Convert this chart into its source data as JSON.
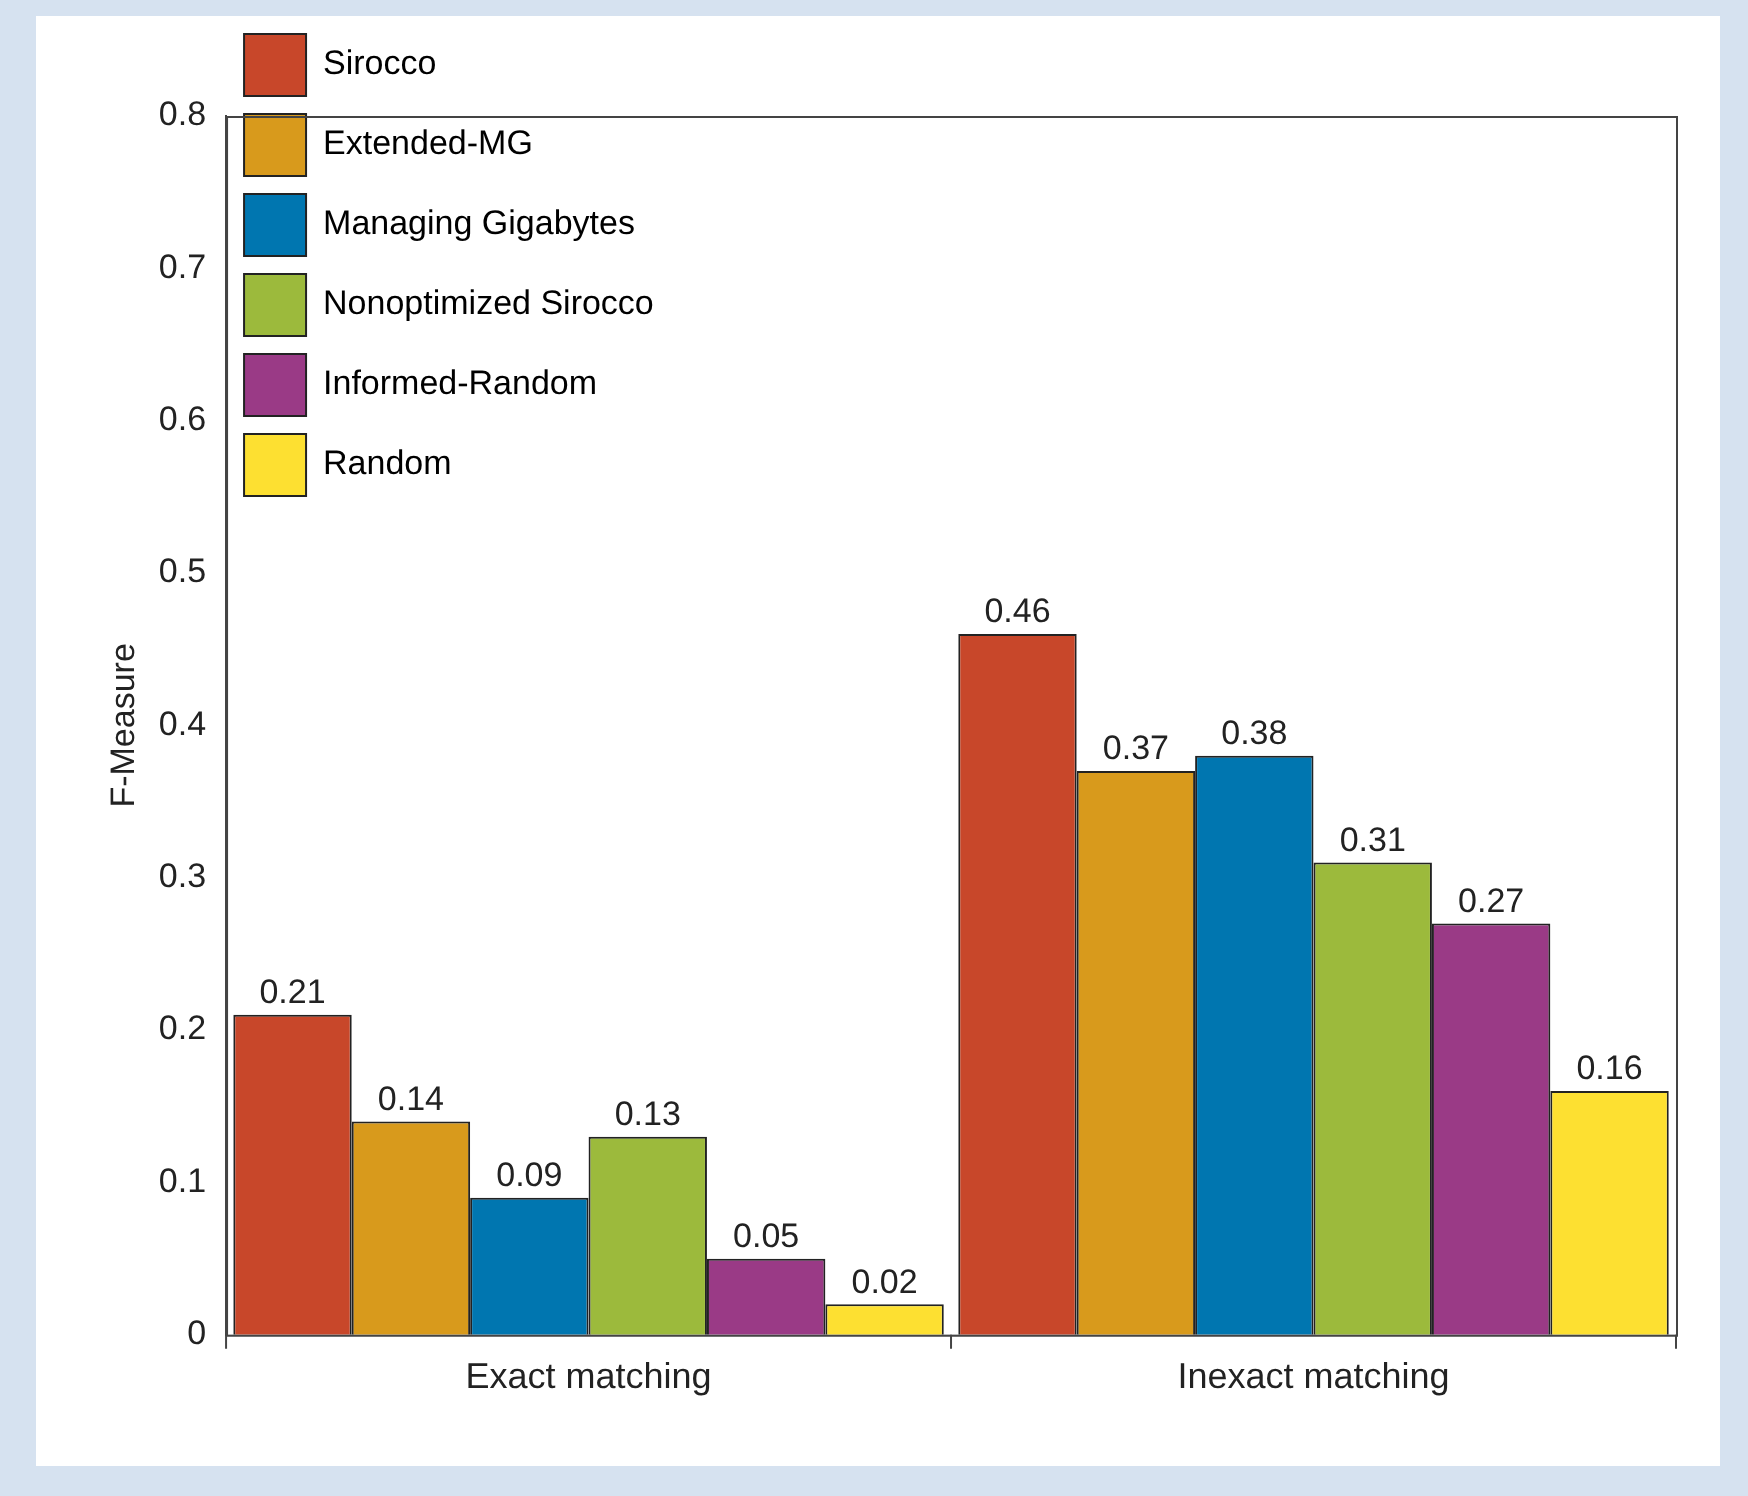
{
  "chart_data": {
    "type": "bar",
    "ylabel": "F-Measure",
    "categories": [
      "Exact matching",
      "Inexact matching"
    ],
    "series": [
      {
        "name": "Sirocco",
        "color": "#c8472a",
        "values": [
          0.21,
          0.46
        ]
      },
      {
        "name": "Extended-MG",
        "color": "#d89a1c",
        "values": [
          0.14,
          0.37
        ]
      },
      {
        "name": "Managing Gigabytes",
        "color": "#0076b0",
        "values": [
          0.09,
          0.38
        ]
      },
      {
        "name": "Nonoptimized Sirocco",
        "color": "#9cba3c",
        "values": [
          0.13,
          0.31
        ]
      },
      {
        "name": "Informed-Random",
        "color": "#9a3a86",
        "values": [
          0.05,
          0.27
        ]
      },
      {
        "name": "Random",
        "color": "#fde031",
        "values": [
          0.02,
          0.16
        ]
      }
    ],
    "ylim": [
      0,
      0.8
    ],
    "yticks": [
      0,
      0.1,
      0.2,
      0.3,
      0.4,
      0.5,
      0.6,
      0.7,
      0.8
    ],
    "data_labels": true,
    "legend": "top left",
    "grid": false
  }
}
